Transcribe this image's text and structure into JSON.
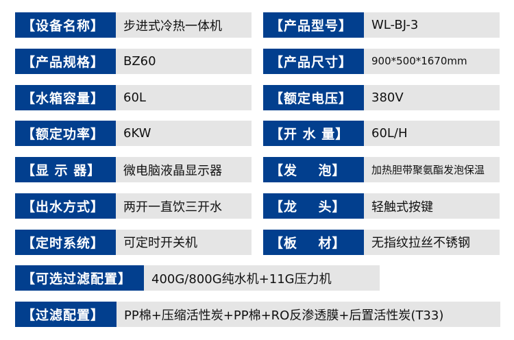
{
  "colors": {
    "label_bg": "#023f8e",
    "value_bg": "#e5e5e5"
  },
  "left": [
    {
      "label": "【设备名称】",
      "value": "步进式冷热一体机"
    },
    {
      "label": "【产品规格】",
      "value": "BZ60"
    },
    {
      "label": "【水箱容量】",
      "value": "60L"
    },
    {
      "label": "【额定功率】",
      "value": "6KW"
    },
    {
      "label": "【显 示 器】",
      "value": "微电脑液晶显示器"
    },
    {
      "label": "【出水方式】",
      "value": "两开一直饮三开水"
    },
    {
      "label": "【定时系统】",
      "value": "可定时开关机"
    }
  ],
  "right": [
    {
      "label": "【产品型号】",
      "value": "WL-BJ-3"
    },
    {
      "label": "【产品尺寸】",
      "value": "900*500*1670mm"
    },
    {
      "label": "【额定电压】",
      "value": "380V"
    },
    {
      "label": "【开 水 量】",
      "value": "60L/H"
    },
    {
      "label": "【发    泡】",
      "value": "加热胆带聚氨酯发泡保温"
    },
    {
      "label": "【龙    头】",
      "value": "轻触式按键"
    },
    {
      "label": "【板    材】",
      "value": "无指纹拉丝不锈钢"
    }
  ],
  "optional_filter": {
    "label": "【可选过滤配置】",
    "value": "400G/800G纯水机+11G压力机"
  },
  "filter": {
    "label": "【过滤配置】",
    "value": "PP棉+压缩活性炭+PP棉+RO反渗透膜+后置活性炭(T33)"
  }
}
